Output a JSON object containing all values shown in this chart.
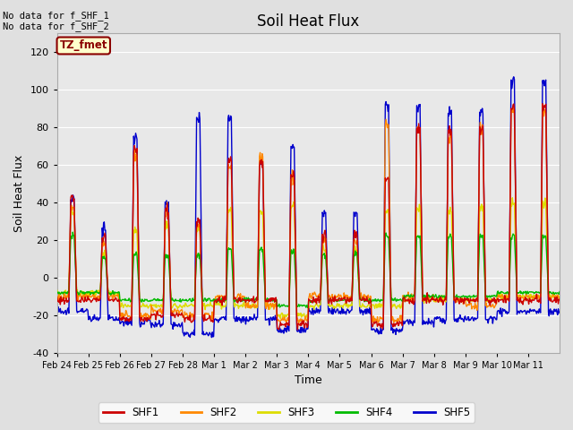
{
  "title": "Soil Heat Flux",
  "ylabel": "Soil Heat Flux",
  "xlabel": "Time",
  "ylim": [
    -40,
    130
  ],
  "background_color": "#e0e0e0",
  "plot_bg_color": "#e8e8e8",
  "annotation_text": "No data for f_SHF_1\nNo data for f_SHF_2",
  "legend_label": "TZ_fmet",
  "legend_bg": "#ffffcc",
  "legend_border": "#8b0000",
  "series_colors": {
    "SHF1": "#cc0000",
    "SHF2": "#ff8800",
    "SHF3": "#dddd00",
    "SHF4": "#00bb00",
    "SHF5": "#0000cc"
  },
  "xtick_labels": [
    "Feb 24",
    "Feb 25",
    "Feb 26",
    "Feb 27",
    "Feb 28",
    "Mar 1",
    "Mar 2",
    "Mar 3",
    "Mar 4",
    "Mar 5",
    "Mar 6",
    "Mar 7",
    "Mar 8",
    "Mar 9",
    "Mar 10",
    "Mar 11"
  ],
  "ytick_labels": [
    -40,
    -20,
    0,
    20,
    40,
    60,
    80,
    100,
    120
  ],
  "n_days": 16,
  "pts_per_day": 48
}
